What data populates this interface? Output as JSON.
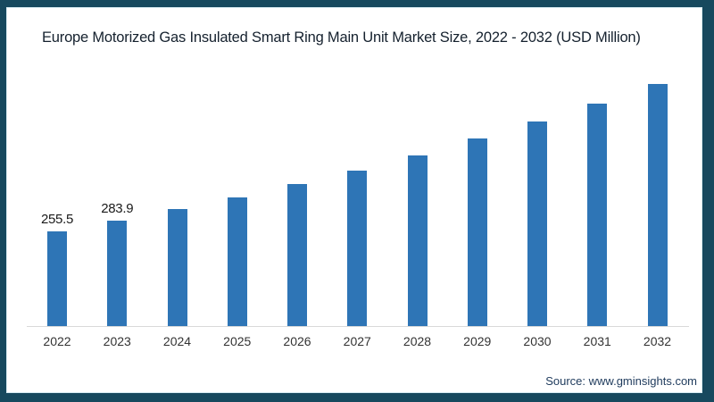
{
  "chart_data": {
    "type": "bar",
    "title": "Europe Motorized Gas Insulated Smart Ring Main Unit Market Size, 2022 - 2032 (USD Million)",
    "categories": [
      "2022",
      "2023",
      "2024",
      "2025",
      "2026",
      "2027",
      "2028",
      "2029",
      "2030",
      "2031",
      "2032"
    ],
    "values": [
      255.5,
      283.9,
      316,
      348,
      383,
      421,
      462,
      506,
      552,
      600,
      653
    ],
    "bar_labels": [
      "255.5",
      "283.9",
      "",
      "",
      "",
      "",
      "",
      "",
      "",
      "",
      ""
    ],
    "xlabel": "",
    "ylabel": "",
    "ylim": [
      0,
      700
    ],
    "grid": false,
    "legend": false
  },
  "source": {
    "text": "Source: www.gminsights.com"
  },
  "colors": {
    "bar_color": "#2E75B6",
    "frame_border": "#17495E",
    "frame_inner_line": "#D8ECF2",
    "title_text": "#15212E",
    "tick_text": "#333333",
    "value_text": "#1A1A1A",
    "axis_line": "#D9D9D9",
    "source_text": "#1E3A5C"
  }
}
